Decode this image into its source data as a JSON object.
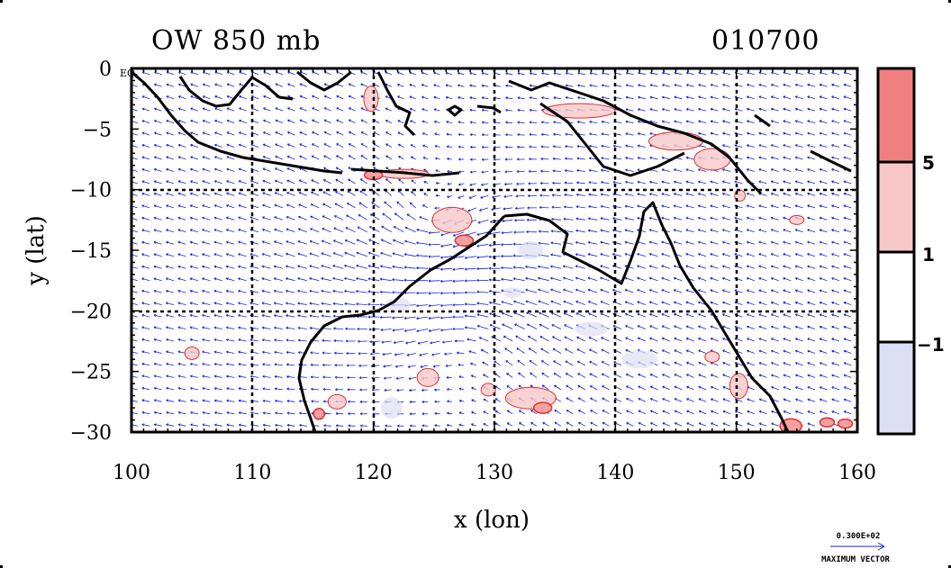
{
  "title_left": "OW 850 mb",
  "title_right": "010700",
  "x_axis": {
    "label": "x (lon)",
    "ticks": [
      "100",
      "110",
      "120",
      "130",
      "140",
      "150",
      "160"
    ],
    "range": [
      100,
      160
    ]
  },
  "y_axis": {
    "label": "y (lat)",
    "ticks": [
      "0",
      "−5",
      "−10",
      "−15",
      "−20",
      "−25",
      "−30"
    ],
    "range": [
      -30,
      0
    ]
  },
  "eq_label": "EQ",
  "colorbar": {
    "labels": [
      "5",
      "1",
      "−1"
    ],
    "colors": [
      "#f08080",
      "#f8c8c8",
      "#ffffff",
      "#dde0f4"
    ]
  },
  "vector_key": {
    "magnitude": "0.300E+02",
    "caption": "MAXIMUM VECTOR"
  },
  "colors": {
    "vector": "#1a22d8",
    "positive": "#e03030",
    "positive_fill": "#f4a0a0",
    "coast": "#000000"
  }
}
